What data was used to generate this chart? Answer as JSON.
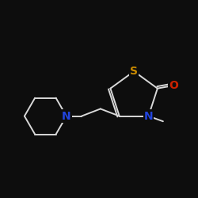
{
  "background_color": "#0d0d0d",
  "bond_color": "#d8d8d8",
  "atom_colors": {
    "S": "#c98a00",
    "O": "#cc2200",
    "N_thiazole": "#2244dd",
    "N_piperidine": "#2244dd"
  },
  "font_size": 10,
  "bond_lw": 1.4,
  "fig_size": [
    2.5,
    2.5
  ],
  "dpi": 100
}
